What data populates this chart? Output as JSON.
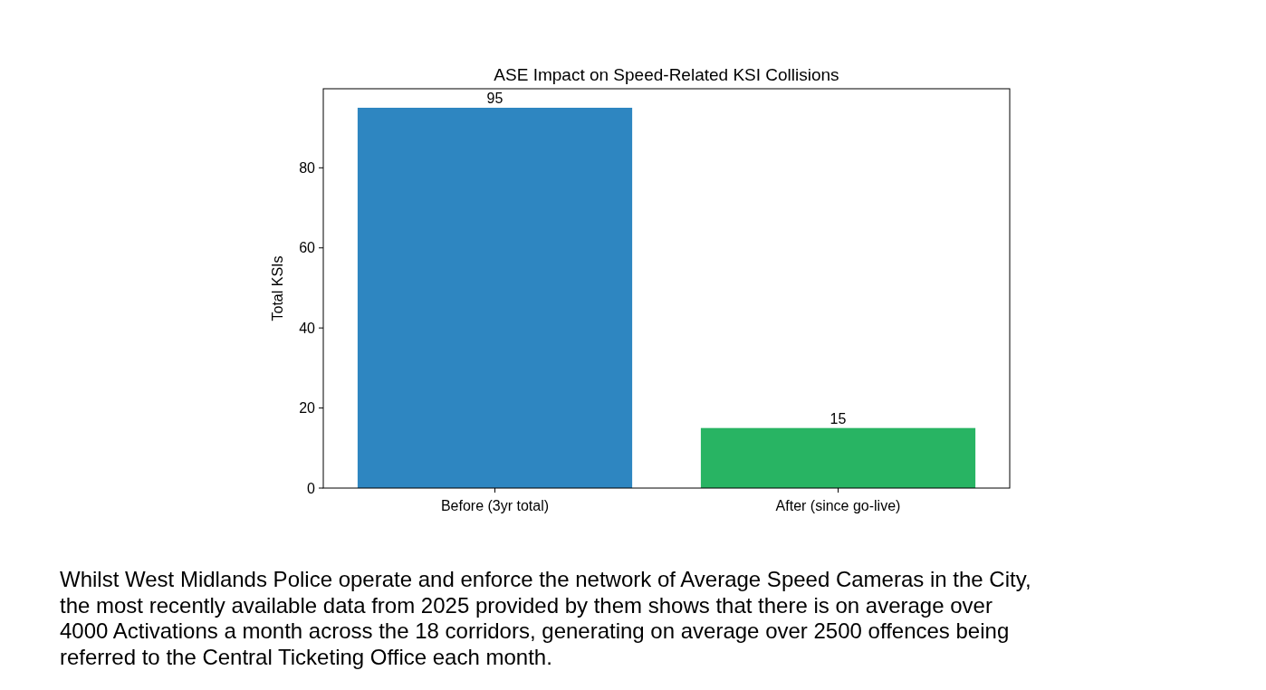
{
  "chart_data": {
    "type": "bar",
    "title": "ASE Impact on Speed-Related KSI Collisions",
    "ylabel": "Total KSIs",
    "categories": [
      "Before (3yr total)",
      "After (since go-live)"
    ],
    "values": [
      95,
      15
    ],
    "colors": [
      "#2e86c1",
      "#28b463"
    ],
    "ylim": [
      0,
      99.75
    ],
    "yticks": [
      0,
      20,
      40,
      60,
      80
    ],
    "data_labels": true,
    "grid": false,
    "annotations": [
      "Whilst West Midlands Police operate and enforce the network of Average Speed Cameras in the City, the most recently available data from 2025 provided by them shows that there is on average over 4000 Activations a month across the 18 corridors, generating on average over 2500 offences being referred to the Central Ticketing Office each month."
    ]
  }
}
